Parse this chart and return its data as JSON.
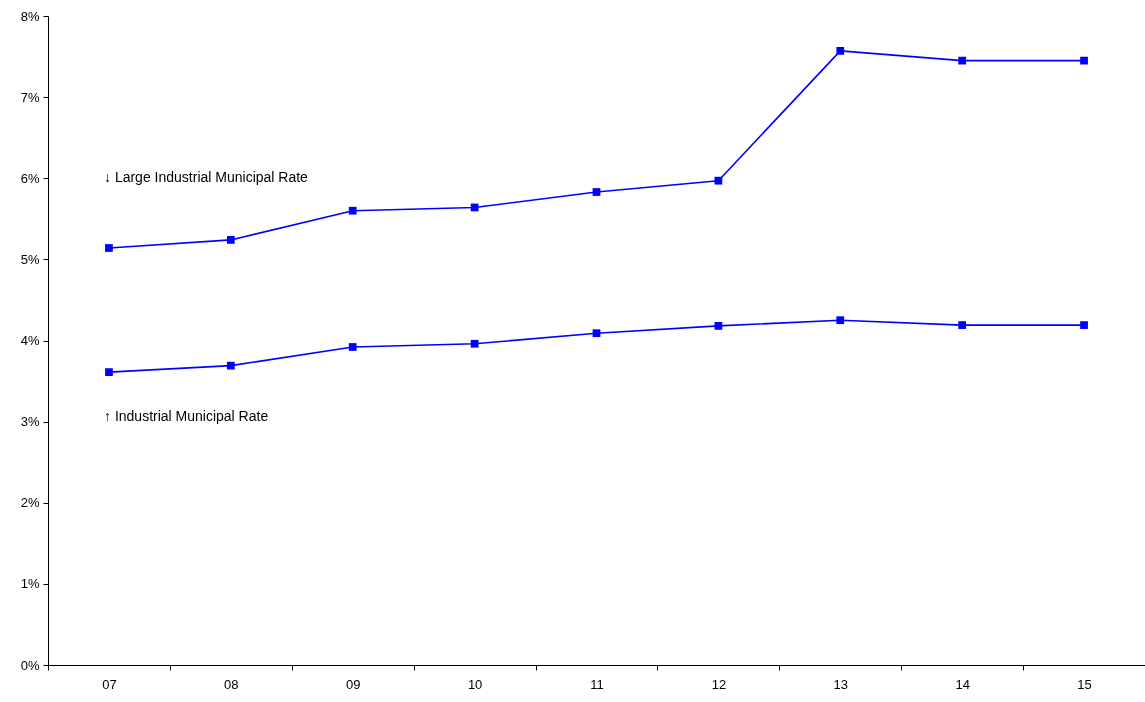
{
  "chart_data": {
    "type": "line",
    "categories": [
      "07",
      "08",
      "09",
      "10",
      "11",
      "12",
      "13",
      "14",
      "15"
    ],
    "series": [
      {
        "color": "#0000ff",
        "values": [
          5.14,
          5.24,
          5.6,
          5.64,
          5.83,
          5.97,
          7.57,
          7.45,
          7.45
        ]
      },
      {
        "color": "#0000ff",
        "values": [
          3.61,
          3.69,
          3.92,
          3.96,
          4.09,
          4.18,
          4.25,
          4.19,
          4.19
        ]
      }
    ],
    "ylim": [
      0,
      8
    ],
    "yticks": [
      {
        "value": 0,
        "label": "0%"
      },
      {
        "value": 1,
        "label": "1%"
      },
      {
        "value": 2,
        "label": "2%"
      },
      {
        "value": 3,
        "label": "3%"
      },
      {
        "value": 4,
        "label": "4%"
      },
      {
        "value": 5,
        "label": "5%"
      },
      {
        "value": 6,
        "label": "6%"
      },
      {
        "value": 7,
        "label": "7%"
      },
      {
        "value": 8,
        "label": "8%"
      }
    ],
    "annotations": [
      "↓  Large Industrial Municipal Rate",
      "↑  Industrial Municipal Rate"
    ],
    "marker": "square",
    "grid": false,
    "line_style": "solid"
  }
}
